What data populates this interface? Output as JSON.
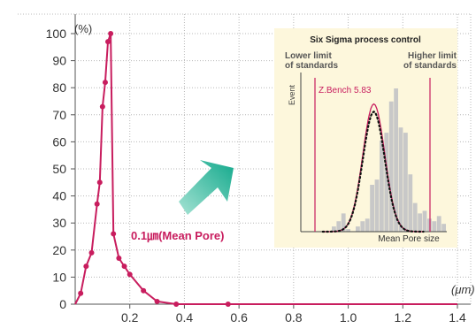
{
  "colors": {
    "curve": "#c81d5e",
    "grid": "#b8b8b8",
    "axis": "#555555",
    "inset_bg": "#fdf7dc",
    "inset_bars": "#c8c8c8",
    "arrow": "#1fb59a"
  },
  "chart_data": [
    {
      "type": "line",
      "y_unit_label": "(%)",
      "x_unit_label": "(μm)",
      "xlim": [
        0,
        1.4
      ],
      "ylim": [
        0,
        100
      ],
      "x_ticks": [
        "0.2",
        "0.4",
        "0.6",
        "0.8",
        "1.0",
        "1.2",
        "1.4"
      ],
      "y_ticks": [
        "0",
        "10",
        "20",
        "30",
        "40",
        "50",
        "60",
        "70",
        "80",
        "90",
        "100"
      ],
      "grid": "horizontal and vertical dotted",
      "annotation": "0.1㎛(Mean Pore)",
      "series": [
        {
          "x": [
            0.0,
            0.02,
            0.04,
            0.06,
            0.08,
            0.09,
            0.1,
            0.11,
            0.12,
            0.13,
            0.14,
            0.16,
            0.18,
            0.2,
            0.25,
            0.3,
            0.37,
            0.56,
            1.4
          ],
          "y": [
            0,
            4,
            14,
            19,
            37,
            45,
            73,
            82,
            97,
            100,
            26,
            17,
            14,
            11,
            5,
            1,
            0,
            0,
            0
          ],
          "markers": [
            {
              "x": 0.02,
              "y": 4
            },
            {
              "x": 0.04,
              "y": 14
            },
            {
              "x": 0.06,
              "y": 19
            },
            {
              "x": 0.08,
              "y": 37
            },
            {
              "x": 0.09,
              "y": 45
            },
            {
              "x": 0.1,
              "y": 73
            },
            {
              "x": 0.11,
              "y": 82
            },
            {
              "x": 0.12,
              "y": 97
            },
            {
              "x": 0.13,
              "y": 100
            },
            {
              "x": 0.14,
              "y": 26
            },
            {
              "x": 0.16,
              "y": 17
            },
            {
              "x": 0.18,
              "y": 14
            },
            {
              "x": 0.2,
              "y": 11
            },
            {
              "x": 0.25,
              "y": 5
            },
            {
              "x": 0.3,
              "y": 1
            },
            {
              "x": 0.37,
              "y": 0
            },
            {
              "x": 0.56,
              "y": 0
            }
          ]
        }
      ]
    },
    {
      "type": "bar",
      "title": "Six Sigma process control",
      "ylabel": "Event",
      "xlabel": "Mean Pore size",
      "lower_limit_label": "Lower limit of standards",
      "higher_limit_label": "Higher limit of standards",
      "zbench_label": "Z.Bench 5.83",
      "bars": [
        2,
        4,
        7,
        1,
        0,
        2,
        4,
        5,
        18,
        20,
        35,
        38,
        50,
        55,
        40,
        38,
        22,
        11,
        7,
        8,
        5,
        4,
        6,
        3
      ],
      "normal_fit": {
        "mean": 0.5,
        "sd": 0.075,
        "peak": 0.78
      },
      "red_curve_peak": 0.83
    }
  ]
}
